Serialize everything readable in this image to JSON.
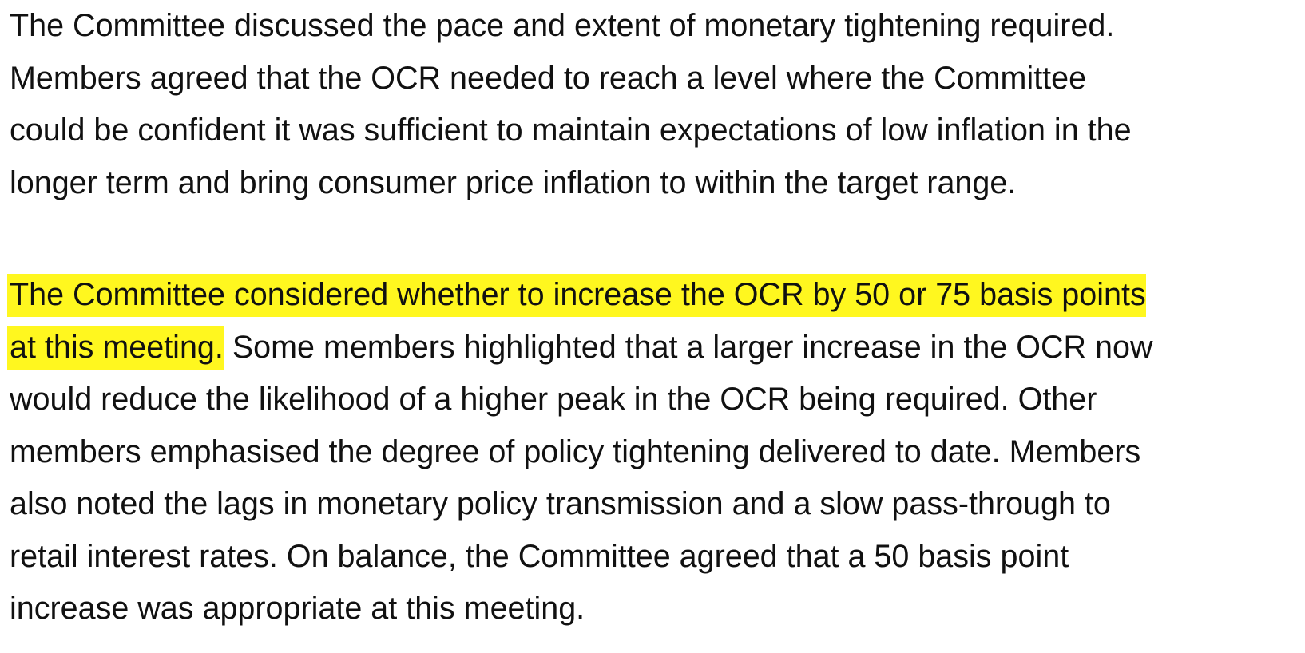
{
  "paragraphs": [
    {
      "lines": [
        "The Committee discussed the pace and extent of monetary tightening required.",
        "Members agreed that the OCR needed to reach a level where the Committee",
        "could be confident it was sufficient to maintain expectations of low inflation in the",
        "longer term and bring consumer price inflation to within the target range."
      ]
    },
    {
      "highlight_color": "#fff71f",
      "line1_highlight": "The Committee considered whether to increase the OCR by 50 or 75 basis points",
      "line2_highlight": "at this meeting.",
      "line2_rest": " Some members highlighted that a larger increase in the OCR now",
      "lines_rest": [
        "would reduce the likelihood of a higher peak in the OCR being required. Other",
        "members emphasised the degree of policy tightening delivered to date. Members",
        "also noted the lags in monetary policy transmission and a slow pass-through to",
        "retail interest rates. On balance, the Committee agreed that a 50 basis point",
        "increase was appropriate at this meeting."
      ]
    }
  ]
}
